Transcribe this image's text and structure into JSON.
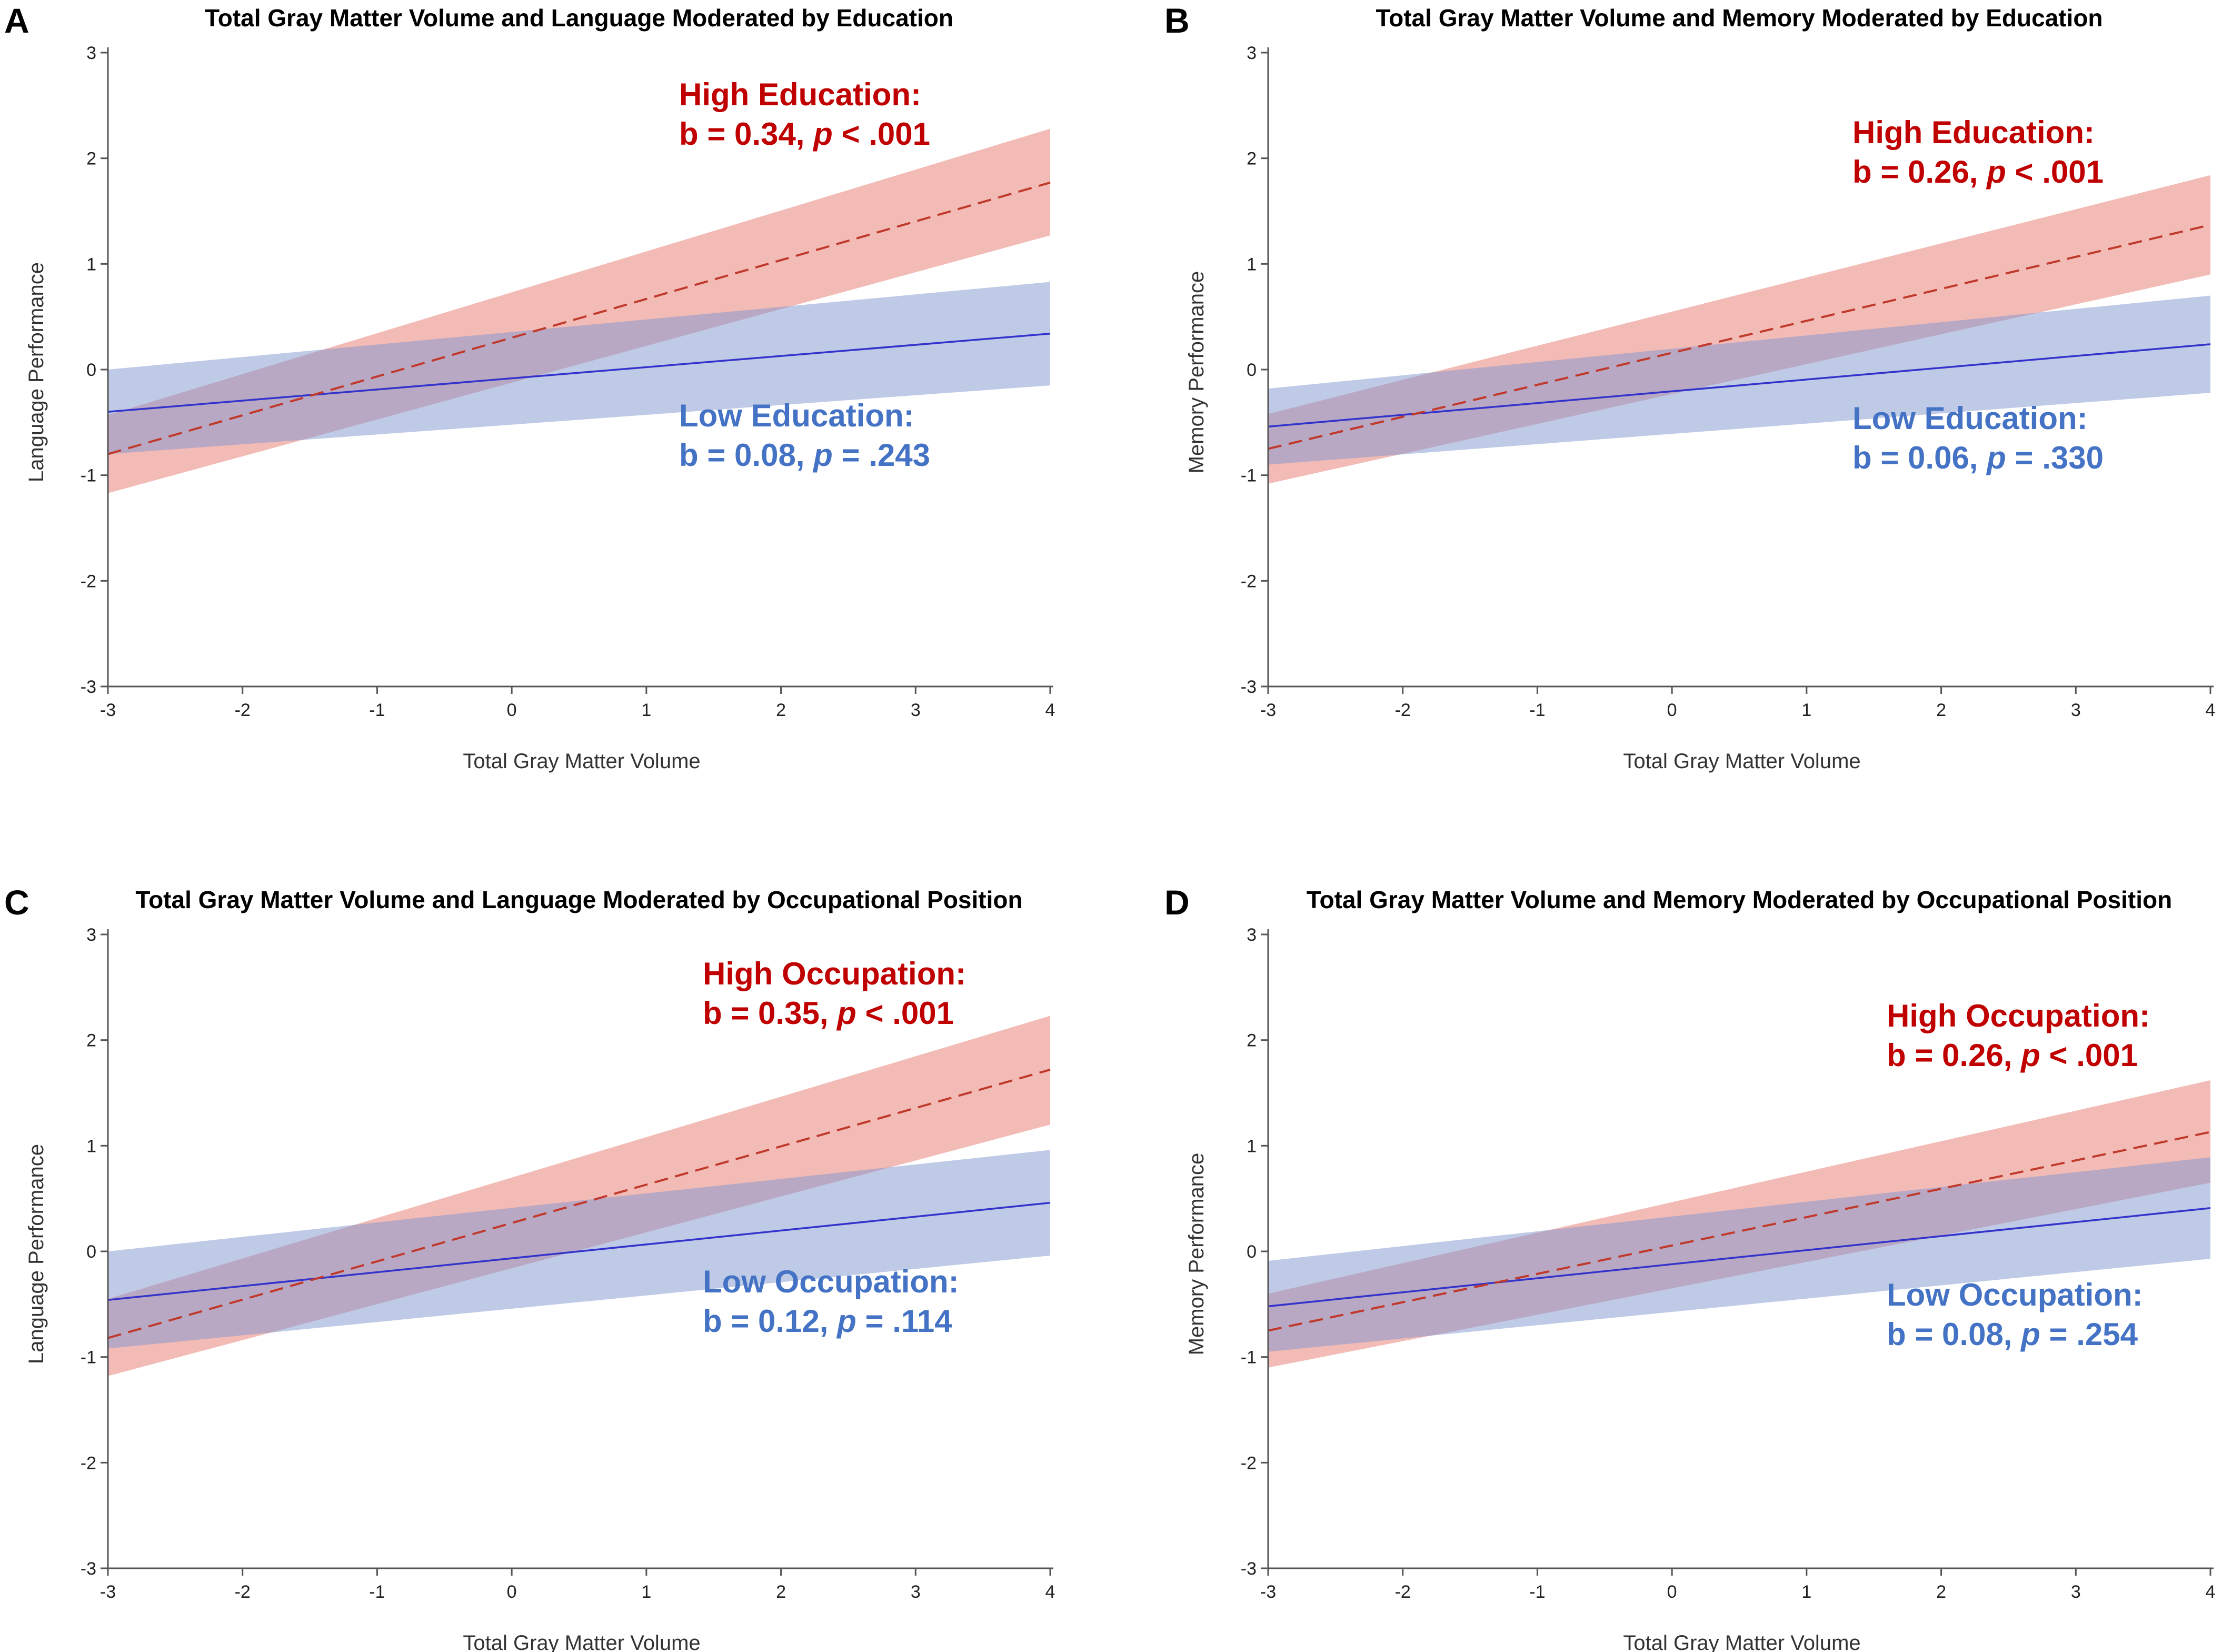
{
  "figure": {
    "panels": [
      "A",
      "B",
      "C",
      "D"
    ]
  },
  "chart_data": [
    {
      "type": "line",
      "panel": "A",
      "title": "Total Gray Matter Volume and Language Moderated by Education",
      "xlabel": "Total Gray Matter Volume",
      "ylabel": "Language Performance",
      "xlim": [
        -3,
        4
      ],
      "ylim": [
        -3,
        3
      ],
      "xticks": [
        "-3",
        "-2",
        "-1",
        "0",
        "1",
        "2",
        "3",
        "4"
      ],
      "yticks": [
        "-3",
        "-2",
        "-1",
        "0",
        "1",
        "2",
        "3"
      ],
      "x": [
        -3,
        4
      ],
      "series": [
        {
          "name": "High Education",
          "style": "dashed",
          "color": "#c0392b",
          "y": [
            -0.8,
            1.77
          ],
          "lower": [
            -1.17,
            1.27
          ],
          "upper": [
            -0.43,
            2.28
          ]
        },
        {
          "name": "Low Education",
          "style": "solid",
          "color": "#3333cc",
          "y": [
            -0.4,
            0.34
          ],
          "lower": [
            -0.8,
            -0.15
          ],
          "upper": [
            0.0,
            0.83
          ]
        }
      ],
      "annotations": {
        "high": {
          "label": "High Education:",
          "stat": "b = 0.34,",
          "p_symbol": "p",
          "p_value": "< .001"
        },
        "low": {
          "label": "Low Education:",
          "stat": "b = 0.08,",
          "p_symbol": "p",
          "p_value": "= .243"
        }
      }
    },
    {
      "type": "line",
      "panel": "B",
      "title": "Total Gray Matter Volume and Memory Moderated by Education",
      "xlabel": "Total Gray Matter Volume",
      "ylabel": "Memory Performance",
      "xlim": [
        -3,
        4
      ],
      "ylim": [
        -3,
        3
      ],
      "xticks": [
        "-3",
        "-2",
        "-1",
        "0",
        "1",
        "2",
        "3",
        "4"
      ],
      "yticks": [
        "-3",
        "-2",
        "-1",
        "0",
        "1",
        "2",
        "3"
      ],
      "x": [
        -3,
        4
      ],
      "series": [
        {
          "name": "High Education",
          "style": "dashed",
          "color": "#c0392b",
          "y": [
            -0.75,
            1.37
          ],
          "lower": [
            -1.08,
            0.9
          ],
          "upper": [
            -0.42,
            1.84
          ]
        },
        {
          "name": "Low Education",
          "style": "solid",
          "color": "#3333cc",
          "y": [
            -0.54,
            0.24
          ],
          "lower": [
            -0.9,
            -0.22
          ],
          "upper": [
            -0.18,
            0.7
          ]
        }
      ],
      "annotations": {
        "high": {
          "label": "High Education:",
          "stat": "b = 0.26,",
          "p_symbol": "p",
          "p_value": "< .001"
        },
        "low": {
          "label": "Low Education:",
          "stat": "b = 0.06,",
          "p_symbol": "p",
          "p_value": "= .330"
        }
      }
    },
    {
      "type": "line",
      "panel": "C",
      "title": "Total Gray Matter Volume and Language Moderated by Occupational Position",
      "xlabel": "Total Gray Matter Volume",
      "ylabel": "Language Performance",
      "xlim": [
        -3,
        4
      ],
      "ylim": [
        -3,
        3
      ],
      "xticks": [
        "-3",
        "-2",
        "-1",
        "0",
        "1",
        "2",
        "3",
        "4"
      ],
      "yticks": [
        "-3",
        "-2",
        "-1",
        "0",
        "1",
        "2",
        "3"
      ],
      "x": [
        -3,
        4
      ],
      "series": [
        {
          "name": "High Occupation",
          "style": "dashed",
          "color": "#c0392b",
          "y": [
            -0.82,
            1.72
          ],
          "lower": [
            -1.18,
            1.2
          ],
          "upper": [
            -0.45,
            2.23
          ]
        },
        {
          "name": "Low Occupation",
          "style": "solid",
          "color": "#3333cc",
          "y": [
            -0.46,
            0.46
          ],
          "lower": [
            -0.92,
            -0.04
          ],
          "upper": [
            0.0,
            0.96
          ]
        }
      ],
      "annotations": {
        "high": {
          "label": "High Occupation:",
          "stat": "b = 0.35,",
          "p_symbol": "p",
          "p_value": "< .001"
        },
        "low": {
          "label": "Low Occupation:",
          "stat": "b = 0.12,",
          "p_symbol": "p",
          "p_value": "= .114"
        }
      }
    },
    {
      "type": "line",
      "panel": "D",
      "title": "Total Gray Matter Volume and Memory Moderated by Occupational Position",
      "xlabel": "Total Gray Matter Volume",
      "ylabel": "Memory Performance",
      "xlim": [
        -3,
        4
      ],
      "ylim": [
        -3,
        3
      ],
      "xticks": [
        "-3",
        "-2",
        "-1",
        "0",
        "1",
        "2",
        "3",
        "4"
      ],
      "yticks": [
        "-3",
        "-2",
        "-1",
        "0",
        "1",
        "2",
        "3"
      ],
      "x": [
        -3,
        4
      ],
      "series": [
        {
          "name": "High Occupation",
          "style": "dashed",
          "color": "#c0392b",
          "y": [
            -0.75,
            1.13
          ],
          "lower": [
            -1.1,
            0.65
          ],
          "upper": [
            -0.4,
            1.62
          ]
        },
        {
          "name": "Low Occupation",
          "style": "solid",
          "color": "#3333cc",
          "y": [
            -0.52,
            0.41
          ],
          "lower": [
            -0.95,
            -0.07
          ],
          "upper": [
            -0.09,
            0.89
          ]
        }
      ],
      "annotations": {
        "high": {
          "label": "High Occupation:",
          "stat": "b = 0.26,",
          "p_symbol": "p",
          "p_value": "< .001"
        },
        "low": {
          "label": "Low Occupation:",
          "stat": "b = 0.08,",
          "p_symbol": "p",
          "p_value": "= .254"
        }
      }
    }
  ]
}
